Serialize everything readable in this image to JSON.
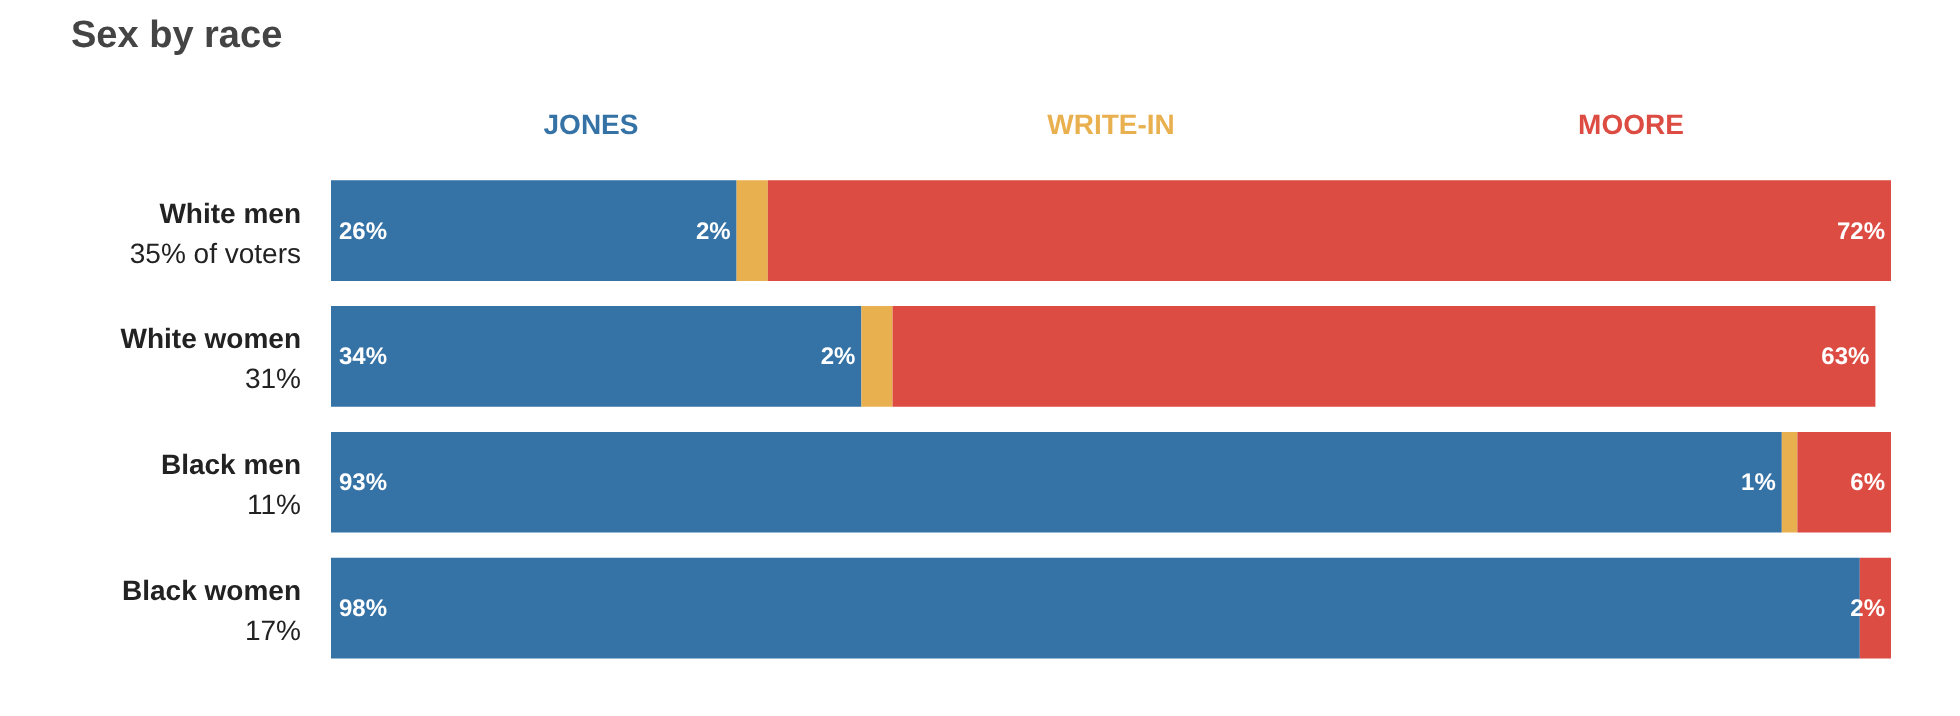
{
  "chart_data": {
    "type": "bar",
    "orientation": "horizontal",
    "stacked": true,
    "title": "Sex by race",
    "categories": [
      "White men\n35% of voters",
      "White women\n31%",
      "Black men\n11%",
      "Black women\n17%"
    ],
    "xlim": [
      0,
      100
    ],
    "tick_labels": "y",
    "legend": "top",
    "grid": false,
    "series": [
      {
        "name": "JONES",
        "color": "#3572a6",
        "values": [
          26,
          34,
          93,
          98
        ],
        "value_labels": [
          "26%",
          "34%",
          "93%",
          "98%"
        ]
      },
      {
        "name": "WRITE-IN",
        "color": "#e9b04f",
        "values": [
          2,
          2,
          1,
          null
        ],
        "value_labels": [
          "2%",
          "2%",
          "1%",
          null
        ]
      },
      {
        "name": "MOORE",
        "color": "#dc4c43",
        "values": [
          72,
          63,
          6,
          2
        ],
        "value_labels": [
          "72%",
          "63%",
          "6%",
          "2%"
        ]
      }
    ]
  }
}
